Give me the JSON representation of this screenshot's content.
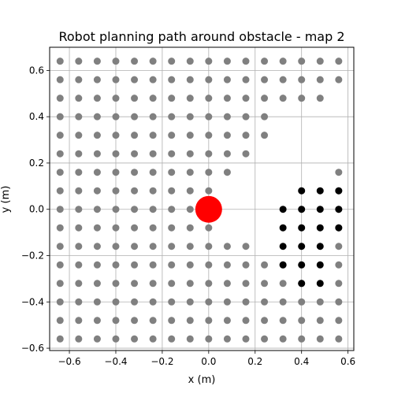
{
  "chart_data": {
    "type": "scatter",
    "title": "Robot planning path around obstacle - map 2",
    "xlabel": "x (m)",
    "ylabel": "y (m)",
    "xlim": [
      -0.685,
      0.625
    ],
    "ylim": [
      -0.61,
      0.7
    ],
    "xticks": [
      -0.6,
      -0.4,
      -0.2,
      0.0,
      0.2,
      0.4,
      0.6
    ],
    "yticks": [
      -0.6,
      -0.4,
      -0.2,
      0.0,
      0.2,
      0.4,
      0.6
    ],
    "xtick_labels": [
      "−0.6",
      "−0.4",
      "−0.2",
      "0.0",
      "0.2",
      "0.4",
      "0.6"
    ],
    "ytick_labels": [
      "−0.6",
      "−0.4",
      "−0.2",
      "0.0",
      "0.2",
      "0.4",
      "0.6"
    ],
    "grid": true,
    "grid_x": [
      -0.64,
      -0.56,
      -0.48,
      -0.4,
      -0.32,
      -0.24,
      -0.16,
      -0.08,
      0.0,
      0.08,
      0.16,
      0.24,
      0.32,
      0.4,
      0.48,
      0.56
    ],
    "grid_y": [
      0.64,
      0.56,
      0.48,
      0.4,
      0.32,
      0.24,
      0.16,
      0.08,
      0.0,
      -0.08,
      -0.16,
      -0.24,
      -0.32,
      -0.4,
      -0.48,
      -0.56
    ],
    "gray_rows": [
      "1111111111111111",
      "1111111111111111",
      "1111111111111110",
      "1111111111110000",
      "1111111111110000",
      "1111111111100000",
      "1111111111000001",
      "1111111110000001",
      "1111111100000001",
      "1111111110000001",
      "1111111111100001",
      "1111111111111001",
      "1111111111111101",
      "1111111111111111",
      "1111111111111111",
      "1111111111111111"
    ],
    "black_points": [
      [
        0.4,
        0.08
      ],
      [
        0.48,
        0.08
      ],
      [
        0.56,
        0.08
      ],
      [
        0.32,
        0.0
      ],
      [
        0.4,
        0.0
      ],
      [
        0.48,
        0.0
      ],
      [
        0.56,
        0.0
      ],
      [
        0.32,
        -0.08
      ],
      [
        0.4,
        -0.08
      ],
      [
        0.48,
        -0.08
      ],
      [
        0.56,
        -0.08
      ],
      [
        0.32,
        -0.16
      ],
      [
        0.4,
        -0.16
      ],
      [
        0.48,
        -0.16
      ],
      [
        0.32,
        -0.24
      ],
      [
        0.4,
        -0.24
      ],
      [
        0.48,
        -0.24
      ],
      [
        0.4,
        -0.32
      ],
      [
        0.48,
        -0.32
      ]
    ],
    "obstacle": {
      "x": 0.0,
      "y": 0.0
    },
    "colors": {
      "free": "#808080",
      "path": "#000000",
      "obstacle": "#ff0000",
      "grid": "#b0b0b0"
    }
  }
}
